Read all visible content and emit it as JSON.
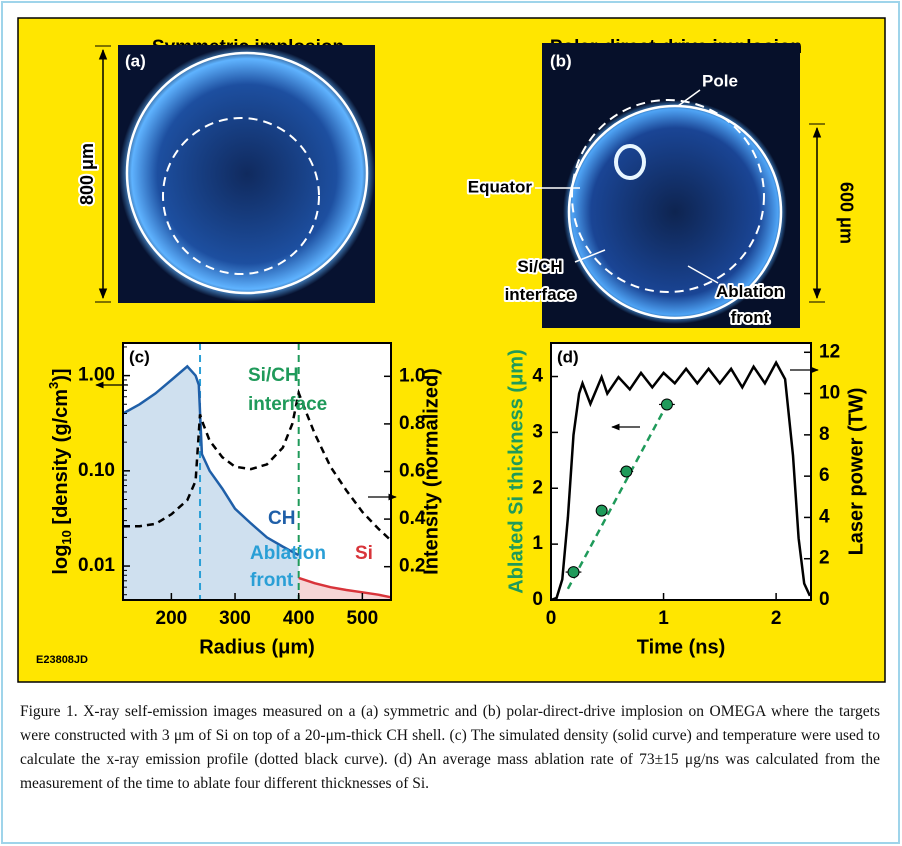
{
  "figure": {
    "panel_a": {
      "title": "Symmetric implosion",
      "label": "(a)",
      "scale": "800 μm"
    },
    "panel_b": {
      "title": "Polar-direct-drive implosion",
      "label": "(b)",
      "scale": "600 μm",
      "pole": "Pole",
      "equator": "Equator",
      "interface": [
        "Si/CH",
        "interface"
      ],
      "ablation": [
        "Ablation",
        "front"
      ]
    },
    "code": "E23808JD"
  },
  "chart_data": [
    {
      "type": "line",
      "title": "(c)",
      "xlabel": "Radius (μm)",
      "ylabel": [
        "log",
        "10",
        " [density (g/cm",
        "3",
        ")]"
      ],
      "y2label": "Intensity (normalized)",
      "xlim": [
        124,
        545
      ],
      "xticks": [
        200,
        300,
        400,
        500
      ],
      "ylog": true,
      "ylim": [
        0.0044,
        2.2
      ],
      "yticks": [
        0.01,
        {
          "value": 0.1,
          "label": "0.10"
        },
        {
          "value": 1,
          "label": "1.00"
        }
      ],
      "y2lim": [
        0.06,
        1.14
      ],
      "y2ticks": [
        0.2,
        0.4,
        0.6,
        0.8,
        {
          "value": 1,
          "label": "1.0"
        }
      ],
      "vlines": [
        {
          "x": 245,
          "color": "#2a9fd6"
        },
        {
          "x": 400,
          "color": "#1f9a5a"
        }
      ],
      "annotations": {
        "interface": [
          "Si/CH",
          "interface"
        ],
        "ablation": [
          "Ablation",
          "front"
        ]
      },
      "series": [
        {
          "name": "CH",
          "color": "#1f5fa8",
          "fill": "#cfe0ef",
          "x": [
            124,
            150,
            175,
            200,
            225,
            238,
            243,
            248,
            260,
            280,
            300,
            325,
            350,
            375,
            400
          ],
          "values": [
            0.4,
            0.5,
            0.65,
            0.9,
            1.25,
            1.0,
            0.8,
            0.15,
            0.1,
            0.065,
            0.04,
            0.028,
            0.02,
            0.016,
            0.013
          ]
        },
        {
          "name": "Si",
          "color": "#d8343a",
          "fill": "#f6d6d6",
          "x": [
            400,
            425,
            450,
            475,
            500,
            525,
            545
          ],
          "values": [
            0.0075,
            0.0066,
            0.006,
            0.0056,
            0.0053,
            0.005,
            0.0047
          ]
        },
        {
          "color": "#000000",
          "dashed": true,
          "axis": "y2",
          "x": [
            124,
            150,
            175,
            200,
            225,
            238,
            245,
            250,
            260,
            280,
            300,
            325,
            350,
            375,
            390,
            400,
            410,
            425,
            450,
            475,
            500,
            525,
            545
          ],
          "values": [
            0.37,
            0.37,
            0.38,
            0.42,
            0.48,
            0.56,
            0.84,
            0.8,
            0.73,
            0.66,
            0.62,
            0.61,
            0.63,
            0.7,
            0.8,
            0.93,
            0.86,
            0.76,
            0.62,
            0.52,
            0.43,
            0.36,
            0.31
          ]
        }
      ]
    },
    {
      "type": "line",
      "title": "(d)",
      "xlabel": "Time (ns)",
      "ylabel": "Ablated Si thickness (μm)",
      "ylabel_color": "#1f9a5a",
      "y2label": "Laser power (TW)",
      "xlim": [
        0,
        2.31
      ],
      "xticks": [
        0,
        1,
        2
      ],
      "ylim": [
        0,
        4.6
      ],
      "yticks": [
        0,
        1,
        2,
        3,
        4
      ],
      "y2lim": [
        0,
        12.45
      ],
      "y2ticks": [
        0,
        2,
        4,
        6,
        8,
        10,
        12
      ],
      "series": [
        {
          "color": "#000000",
          "axis": "y2",
          "x": [
            0,
            0.05,
            0.1,
            0.15,
            0.2,
            0.25,
            0.28,
            0.35,
            0.45,
            0.5,
            0.6,
            0.7,
            0.8,
            0.9,
            1.0,
            1.1,
            1.2,
            1.3,
            1.4,
            1.5,
            1.6,
            1.7,
            1.8,
            1.9,
            2.0,
            2.08,
            2.15,
            2.2,
            2.25,
            2.3
          ],
          "values": [
            0,
            0.1,
            1,
            4,
            8,
            10,
            10.5,
            9.5,
            10.8,
            10,
            10.8,
            10.2,
            11,
            10.3,
            11,
            10.5,
            11.2,
            10.5,
            11.2,
            10.5,
            11.2,
            10.3,
            11.3,
            10.5,
            11.5,
            10.7,
            7,
            3,
            0.8,
            0.2
          ]
        },
        {
          "type": "fit",
          "color": "#1f9a5a",
          "dashed": true,
          "x": [
            0.15,
            1.03
          ],
          "values": [
            0.2,
            3.5
          ]
        },
        {
          "type": "scatter",
          "color": "#1f9a5a",
          "x": [
            0.2,
            0.45,
            0.67,
            1.03
          ],
          "values": [
            0.5,
            1.6,
            2.3,
            3.5
          ],
          "xerr": [
            0.07,
            0.05,
            0.06,
            0.07
          ]
        }
      ]
    }
  ],
  "caption": "Figure 1. X-ray self-emission images measured on a (a) symmetric and (b) polar-direct-drive implosion on OMEGA where the targets were constructed with 3 μm of Si on top of a 20-μm-thick CH shell. (c) The simulated density (solid curve) and temperature were used to calculate the x-ray emission profile (dotted black curve). (d) An average mass ablation rate of 73±15 μg/ns was calculated from the measurement of the time to ablate four different thicknesses of Si."
}
